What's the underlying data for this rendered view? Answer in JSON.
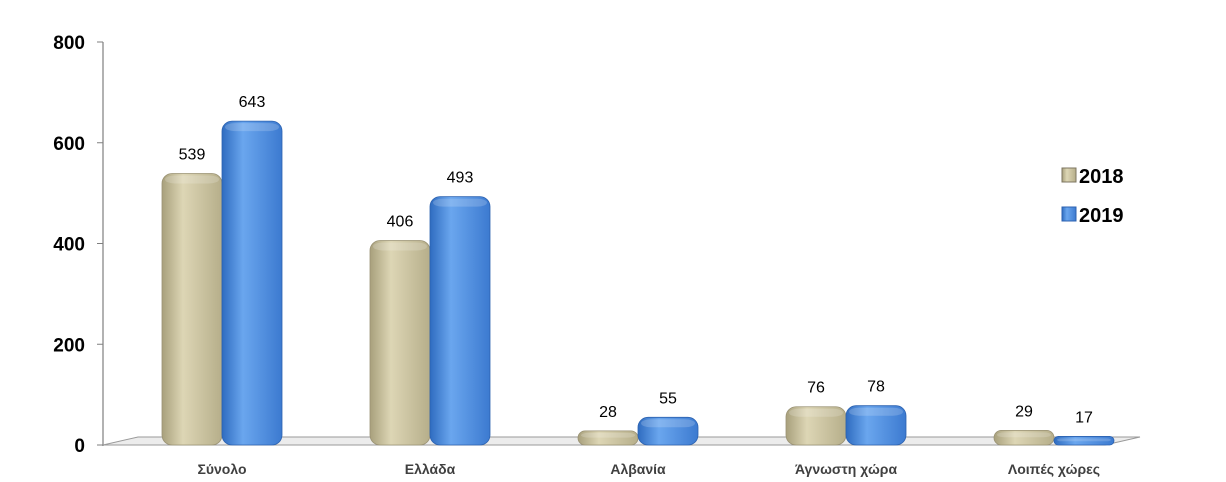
{
  "chart_data": {
    "type": "bar",
    "title": "",
    "xlabel": "",
    "ylabel": "",
    "categories": [
      "Σύνολο",
      "Ελλάδα",
      "Αλβανία",
      "Άγνωστη χώρα",
      "Λοιπές χώρες"
    ],
    "series": [
      {
        "name": "2018",
        "values": [
          539,
          406,
          28,
          76,
          29
        ],
        "color": "#c9c19c"
      },
      {
        "name": "2019",
        "values": [
          643,
          493,
          55,
          78,
          17
        ],
        "color": "#4a8ad8"
      }
    ],
    "ylim": [
      0,
      800
    ],
    "yticks": [
      "0",
      "200",
      "400",
      "600",
      "800"
    ],
    "grid": false,
    "legend": "right",
    "style": "3d-cylinder-bars"
  }
}
